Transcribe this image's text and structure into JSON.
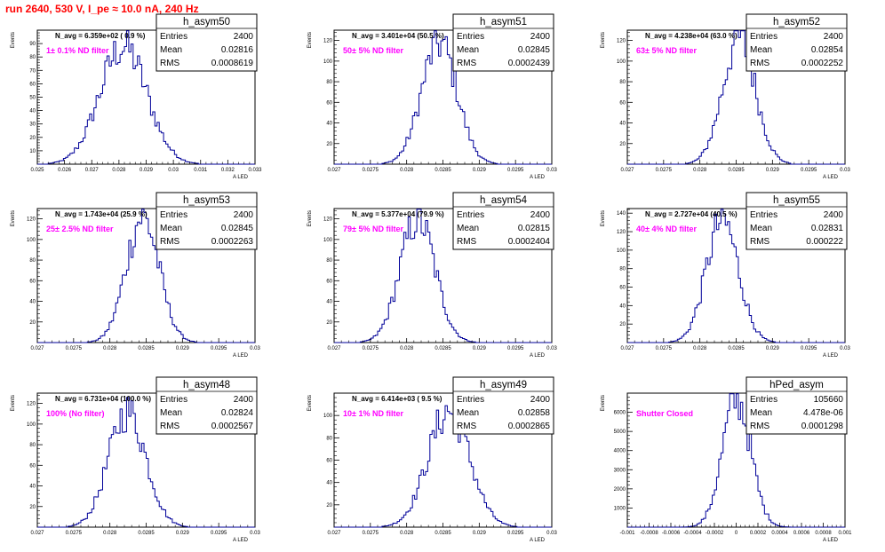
{
  "run_title": "run 2640,   530 V, I_pe ≈ 10.0 nA, 240 Hz",
  "stat_labels": {
    "entries": "Entries",
    "mean": "Mean",
    "rms": "RMS"
  },
  "colors": {
    "hist": "#000099",
    "title": "#ff0000",
    "filter": "#ff00ff"
  },
  "chart_data": [
    {
      "type": "histogram",
      "name": "h_asym50",
      "navg": "N_avg = 6.359e+02 ( 0.9 %)",
      "filter_label": "1± 0.1% ND filter",
      "stats": {
        "entries": "2400",
        "mean": "0.02816",
        "rms": "0.0008619"
      },
      "xlabel": "A_LED",
      "ylabel": "Events",
      "xlim": [
        0.025,
        0.033
      ],
      "ylim": [
        0,
        100
      ],
      "xticks": [
        "0.025",
        "0.026",
        "0.027",
        "0.028",
        "0.029",
        "0.03",
        "0.031",
        "0.032",
        "0.033"
      ],
      "yticks": [
        "10",
        "20",
        "30",
        "40",
        "50",
        "60",
        "70",
        "80",
        "90"
      ],
      "mean": 0.02816,
      "rms": 0.0008619,
      "peak": 88
    },
    {
      "type": "histogram",
      "name": "h_asym51",
      "navg": "N_avg = 3.401e+04 (50.5 %)",
      "filter_label": "50± 5% ND filter",
      "stats": {
        "entries": "2400",
        "mean": "0.02845",
        "rms": "0.0002439"
      },
      "xlabel": "A_LED",
      "ylabel": "Events",
      "xlim": [
        0.027,
        0.03
      ],
      "ylim": [
        0,
        130
      ],
      "xticks": [
        "0.027",
        "0.0275",
        "0.028",
        "0.0285",
        "0.029",
        "0.0295",
        "0.03"
      ],
      "yticks": [
        "20",
        "40",
        "60",
        "80",
        "100",
        "120"
      ],
      "mean": 0.02845,
      "rms": 0.0002439,
      "peak": 118
    },
    {
      "type": "histogram",
      "name": "h_asym52",
      "navg": "N_avg = 4.238e+04 (63.0 %)",
      "filter_label": "63± 5% ND filter",
      "stats": {
        "entries": "2400",
        "mean": "0.02854",
        "rms": "0.0002252"
      },
      "xlabel": "A_LED",
      "ylabel": "Events",
      "xlim": [
        0.027,
        0.03
      ],
      "ylim": [
        0,
        130
      ],
      "xticks": [
        "0.027",
        "0.0275",
        "0.028",
        "0.0285",
        "0.029",
        "0.0295",
        "0.03"
      ],
      "yticks": [
        "20",
        "40",
        "60",
        "80",
        "100",
        "120"
      ],
      "mean": 0.02854,
      "rms": 0.0002252,
      "peak": 122
    },
    {
      "type": "histogram",
      "name": "h_asym53",
      "navg": "N_avg = 1.743e+04 (25.9 %)",
      "filter_label": "25± 2.5% ND filter",
      "stats": {
        "entries": "2400",
        "mean": "0.02845",
        "rms": "0.0002263"
      },
      "xlabel": "A_LED",
      "ylabel": "Events",
      "xlim": [
        0.027,
        0.03
      ],
      "ylim": [
        0,
        130
      ],
      "xticks": [
        "0.027",
        "0.0275",
        "0.028",
        "0.0285",
        "0.029",
        "0.0295",
        "0.03"
      ],
      "yticks": [
        "20",
        "40",
        "60",
        "80",
        "100",
        "120"
      ],
      "mean": 0.02845,
      "rms": 0.0002263,
      "peak": 122
    },
    {
      "type": "histogram",
      "name": "h_asym54",
      "navg": "N_avg = 5.377e+04 (79.9 %)",
      "filter_label": "79± 5% ND filter",
      "stats": {
        "entries": "2400",
        "mean": "0.02815",
        "rms": "0.0002404"
      },
      "xlabel": "A_LED",
      "ylabel": "Events",
      "xlim": [
        0.027,
        0.03
      ],
      "ylim": [
        0,
        130
      ],
      "xticks": [
        "0.027",
        "0.0275",
        "0.028",
        "0.0285",
        "0.029",
        "0.0295",
        "0.03"
      ],
      "yticks": [
        "20",
        "40",
        "60",
        "80",
        "100",
        "120"
      ],
      "mean": 0.02815,
      "rms": 0.0002404,
      "peak": 120
    },
    {
      "type": "histogram",
      "name": "h_asym55",
      "navg": "N_avg = 2.727e+04 (40.5 %)",
      "filter_label": "40± 4% ND filter",
      "stats": {
        "entries": "2400",
        "mean": "0.02831",
        "rms": "0.000222"
      },
      "xlabel": "A_LED",
      "ylabel": "Events",
      "xlim": [
        0.027,
        0.03
      ],
      "ylim": [
        0,
        145
      ],
      "xticks": [
        "0.027",
        "0.0275",
        "0.028",
        "0.0285",
        "0.029",
        "0.0295",
        "0.03"
      ],
      "yticks": [
        "20",
        "40",
        "60",
        "80",
        "100",
        "120",
        "140"
      ],
      "mean": 0.02831,
      "rms": 0.000222,
      "peak": 132
    },
    {
      "type": "histogram",
      "name": "h_asym48",
      "navg": "N_avg = 6.731e+04 (100.0 %)",
      "filter_label": "100% (No filter)",
      "stats": {
        "entries": "2400",
        "mean": "0.02824",
        "rms": "0.0002567"
      },
      "xlabel": "A_LED",
      "ylabel": "Events",
      "xlim": [
        0.027,
        0.03
      ],
      "ylim": [
        0,
        130
      ],
      "xticks": [
        "0.027",
        "0.0275",
        "0.028",
        "0.0285",
        "0.029",
        "0.0295",
        "0.03"
      ],
      "yticks": [
        "20",
        "40",
        "60",
        "80",
        "100",
        "120"
      ],
      "mean": 0.02824,
      "rms": 0.0002567,
      "peak": 112
    },
    {
      "type": "histogram",
      "name": "h_asym49",
      "navg": "N_avg = 6.414e+03 ( 9.5 %)",
      "filter_label": "10± 1% ND filter",
      "stats": {
        "entries": "2400",
        "mean": "0.02858",
        "rms": "0.0002865"
      },
      "xlabel": "A_LED",
      "ylabel": "Events",
      "xlim": [
        0.027,
        0.03
      ],
      "ylim": [
        0,
        120
      ],
      "xticks": [
        "0.027",
        "0.0275",
        "0.028",
        "0.0285",
        "0.029",
        "0.0295",
        "0.03"
      ],
      "yticks": [
        "20",
        "40",
        "60",
        "80",
        "100"
      ],
      "mean": 0.02858,
      "rms": 0.0002865,
      "peak": 104
    },
    {
      "type": "histogram",
      "name": "hPed_asym",
      "navg": "",
      "filter_label": "Shutter Closed",
      "stats": {
        "entries": "105660",
        "mean": "4.478e-06",
        "rms": "0.0001298"
      },
      "xlabel": "A_LED",
      "ylabel": "Events",
      "xlim": [
        -0.001,
        0.001
      ],
      "ylim": [
        0,
        7000
      ],
      "xticks": [
        "-0.001",
        "-0.0008",
        "-0.0006",
        "-0.0004",
        "-0.0002",
        "0",
        "0.0002",
        "0.0004",
        "0.0006",
        "0.0008",
        "0.001"
      ],
      "yticks": [
        "1000",
        "2000",
        "3000",
        "4000",
        "5000",
        "6000"
      ],
      "mean": 4.478e-06,
      "rms": 0.0001298,
      "peak": 6700
    }
  ]
}
